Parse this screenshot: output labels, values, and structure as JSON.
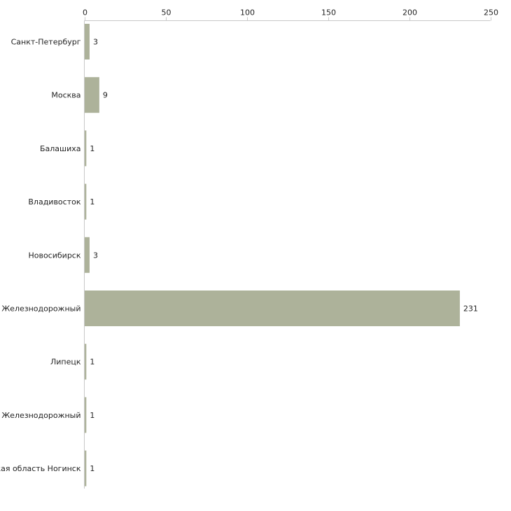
{
  "chart_data": {
    "type": "bar",
    "orientation": "horizontal",
    "title": "",
    "xlabel": "",
    "ylabel": "",
    "xlim": [
      0,
      250
    ],
    "x_ticks": [
      0,
      50,
      100,
      150,
      200,
      250
    ],
    "x_tick_labels": [
      "0",
      "50",
      "100",
      "150",
      "200",
      "250"
    ],
    "axis_position": "top",
    "grid": false,
    "legend": "none",
    "categories": [
      "Санкт-Петербург",
      "Москва",
      "Балашиха",
      "Владивосток",
      "Новосибирск",
      "Железнодорожный",
      "Липецк",
      "ъ Железнодорожный",
      "жая область Ногинск"
    ],
    "values": [
      3,
      9,
      1,
      1,
      3,
      231,
      1,
      1,
      1
    ],
    "value_labels": [
      "3",
      "9",
      "1",
      "1",
      "3",
      "231",
      "1",
      "1",
      "1"
    ],
    "colors": {
      "bar": "#adb29a",
      "axis": "#c8c8c8",
      "text": "#222222"
    }
  }
}
